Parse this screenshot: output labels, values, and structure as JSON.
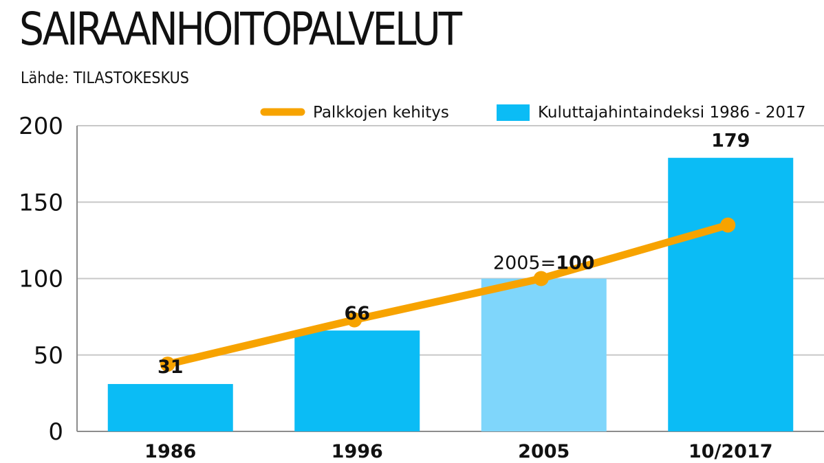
{
  "title": "SAIRAANHOITOPALVELUT",
  "subtitle": "Lähde: TILASTOKESKUS",
  "colors": {
    "bar": "#0bbcf5",
    "bar_highlight": "#7fd6fb",
    "line": "#f7a300",
    "grid": "#c8c8c8",
    "axis": "#8c8c8c"
  },
  "chart_data": {
    "type": "bar",
    "categories": [
      "1986",
      "1996",
      "2005",
      "10/2017"
    ],
    "series": [
      {
        "name": "Kuluttajahintaindeksi 1986 - 2017",
        "type": "bar",
        "values": [
          31,
          66,
          100,
          179
        ],
        "value_labels": [
          "31",
          "66",
          "100",
          "179"
        ],
        "highlight_index": 2
      },
      {
        "name": "Palkkojen kehitys",
        "type": "line",
        "values": [
          44,
          73,
          100,
          135
        ]
      }
    ],
    "annotation": {
      "prefix": "2005=",
      "value": "100"
    },
    "ylim": [
      0,
      200
    ],
    "yticks": [
      0,
      50,
      100,
      150,
      200
    ],
    "ytick_labels": [
      "0",
      "50",
      "100",
      "150",
      "200"
    ],
    "grid": true,
    "legend": {
      "position": "top-right",
      "entries": [
        "Palkkojen kehitys",
        "Kuluttajahintaindeksi 1986 - 2017"
      ]
    }
  }
}
